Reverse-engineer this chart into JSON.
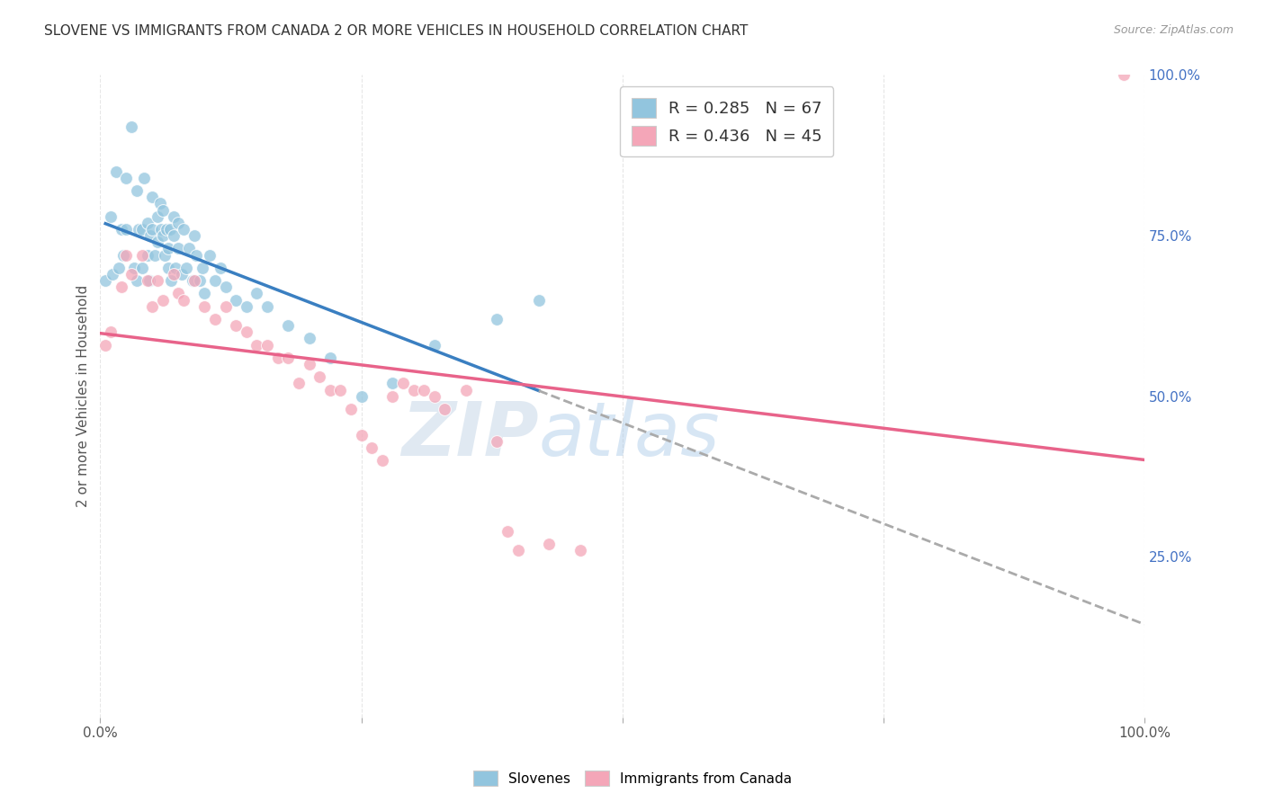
{
  "title": "SLOVENE VS IMMIGRANTS FROM CANADA 2 OR MORE VEHICLES IN HOUSEHOLD CORRELATION CHART",
  "source": "Source: ZipAtlas.com",
  "ylabel": "2 or more Vehicles in Household",
  "xlim": [
    0,
    1
  ],
  "ylim": [
    0,
    1
  ],
  "xtick_pos": [
    0.0,
    0.25,
    0.5,
    0.75,
    1.0
  ],
  "xticklabels": [
    "0.0%",
    "",
    "",
    "",
    "100.0%"
  ],
  "ytick_labels_right": [
    "100.0%",
    "75.0%",
    "50.0%",
    "25.0%",
    ""
  ],
  "ytick_positions_right": [
    1.0,
    0.75,
    0.5,
    0.25,
    0.0
  ],
  "blue_color": "#92c5de",
  "pink_color": "#f4a6b8",
  "blue_line_color": "#3a7fc1",
  "pink_line_color": "#e8638a",
  "dashed_line_color": "#aaaaaa",
  "legend_label_blue": "Slovenes",
  "legend_label_pink": "Immigrants from Canada",
  "slovene_x": [
    0.005,
    0.01,
    0.012,
    0.015,
    0.018,
    0.02,
    0.022,
    0.025,
    0.025,
    0.03,
    0.032,
    0.035,
    0.035,
    0.037,
    0.04,
    0.04,
    0.042,
    0.045,
    0.045,
    0.047,
    0.048,
    0.05,
    0.05,
    0.052,
    0.055,
    0.055,
    0.057,
    0.058,
    0.06,
    0.06,
    0.062,
    0.063,
    0.065,
    0.065,
    0.067,
    0.068,
    0.07,
    0.07,
    0.072,
    0.075,
    0.075,
    0.078,
    0.08,
    0.082,
    0.085,
    0.088,
    0.09,
    0.092,
    0.095,
    0.098,
    0.1,
    0.105,
    0.11,
    0.115,
    0.12,
    0.13,
    0.14,
    0.15,
    0.16,
    0.18,
    0.2,
    0.22,
    0.25,
    0.28,
    0.32,
    0.38,
    0.42
  ],
  "slovene_y": [
    0.68,
    0.78,
    0.69,
    0.85,
    0.7,
    0.76,
    0.72,
    0.84,
    0.76,
    0.92,
    0.7,
    0.82,
    0.68,
    0.76,
    0.76,
    0.7,
    0.84,
    0.77,
    0.72,
    0.68,
    0.75,
    0.81,
    0.76,
    0.72,
    0.78,
    0.74,
    0.8,
    0.76,
    0.79,
    0.75,
    0.72,
    0.76,
    0.73,
    0.7,
    0.76,
    0.68,
    0.78,
    0.75,
    0.7,
    0.77,
    0.73,
    0.69,
    0.76,
    0.7,
    0.73,
    0.68,
    0.75,
    0.72,
    0.68,
    0.7,
    0.66,
    0.72,
    0.68,
    0.7,
    0.67,
    0.65,
    0.64,
    0.66,
    0.64,
    0.61,
    0.59,
    0.56,
    0.5,
    0.52,
    0.58,
    0.62,
    0.65
  ],
  "canada_x": [
    0.005,
    0.01,
    0.02,
    0.025,
    0.03,
    0.04,
    0.045,
    0.05,
    0.055,
    0.06,
    0.07,
    0.075,
    0.08,
    0.09,
    0.1,
    0.11,
    0.12,
    0.13,
    0.14,
    0.15,
    0.16,
    0.17,
    0.18,
    0.19,
    0.2,
    0.21,
    0.22,
    0.23,
    0.24,
    0.25,
    0.26,
    0.27,
    0.28,
    0.29,
    0.3,
    0.31,
    0.32,
    0.33,
    0.35,
    0.38,
    0.39,
    0.4,
    0.43,
    0.46,
    0.98
  ],
  "canada_y": [
    0.58,
    0.6,
    0.67,
    0.72,
    0.69,
    0.72,
    0.68,
    0.64,
    0.68,
    0.65,
    0.69,
    0.66,
    0.65,
    0.68,
    0.64,
    0.62,
    0.64,
    0.61,
    0.6,
    0.58,
    0.58,
    0.56,
    0.56,
    0.52,
    0.55,
    0.53,
    0.51,
    0.51,
    0.48,
    0.44,
    0.42,
    0.4,
    0.5,
    0.52,
    0.51,
    0.51,
    0.5,
    0.48,
    0.51,
    0.43,
    0.29,
    0.26,
    0.27,
    0.26,
    1.0
  ],
  "watermark_zip": "ZIP",
  "watermark_atlas": "atlas",
  "background_color": "#ffffff",
  "grid_color": "#e0e0e0"
}
